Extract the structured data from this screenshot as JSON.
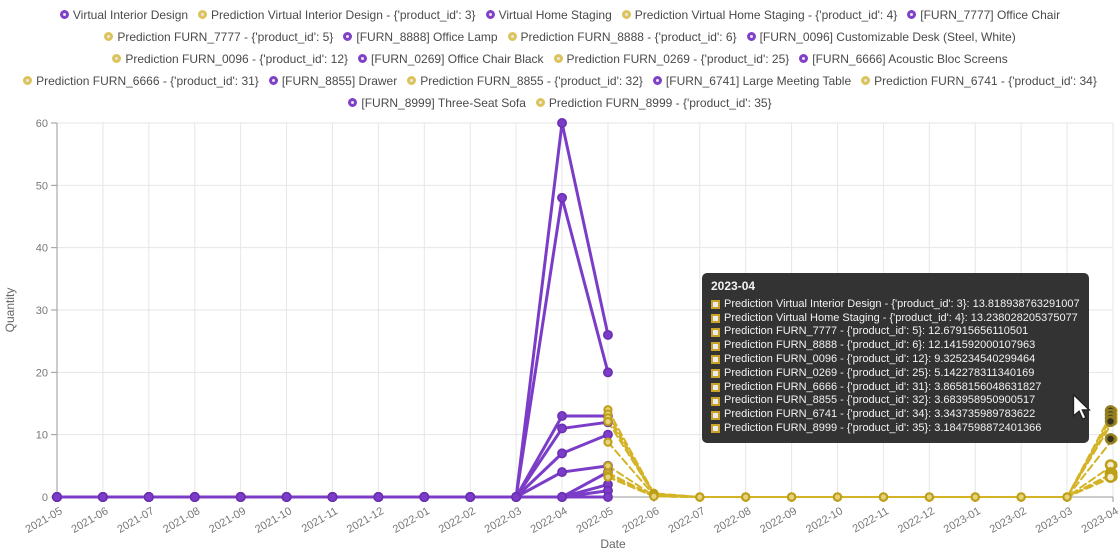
{
  "colors": {
    "actual_line": "#7b3dc8",
    "actual_marker_stroke": "#6a2fb0",
    "prediction_line": "#d4b426",
    "prediction_marker_fill": "#e6d27c",
    "prediction_marker_stroke": "#bd9f1a",
    "grid": "#e6e6e6",
    "axis": "#999999",
    "tick_text": "#787878",
    "tooltip_bg": "#2b2b2b"
  },
  "legend": {
    "items": [
      {
        "label": "Virtual Interior Design",
        "type": "actual"
      },
      {
        "label": "Prediction Virtual Interior Design - {'product_id': 3}",
        "type": "prediction"
      },
      {
        "label": "Virtual Home Staging",
        "type": "actual"
      },
      {
        "label": "Prediction Virtual Home Staging - {'product_id': 4}",
        "type": "prediction"
      },
      {
        "label": "[FURN_7777] Office Chair",
        "type": "actual"
      },
      {
        "label": "Prediction FURN_7777 - {'product_id': 5}",
        "type": "prediction"
      },
      {
        "label": "[FURN_8888] Office Lamp",
        "type": "actual"
      },
      {
        "label": "Prediction FURN_8888 - {'product_id': 6}",
        "type": "prediction"
      },
      {
        "label": "[FURN_0096] Customizable Desk (Steel, White)",
        "type": "actual"
      },
      {
        "label": "Prediction FURN_0096 - {'product_id': 12}",
        "type": "prediction"
      },
      {
        "label": "[FURN_0269] Office Chair Black",
        "type": "actual"
      },
      {
        "label": "Prediction FURN_0269 - {'product_id': 25}",
        "type": "prediction"
      },
      {
        "label": "[FURN_6666] Acoustic Bloc Screens",
        "type": "actual"
      },
      {
        "label": "Prediction FURN_6666 - {'product_id': 31}",
        "type": "prediction"
      },
      {
        "label": "[FURN_8855] Drawer",
        "type": "actual"
      },
      {
        "label": "Prediction FURN_8855 - {'product_id': 32}",
        "type": "prediction"
      },
      {
        "label": "[FURN_6741] Large Meeting Table",
        "type": "actual"
      },
      {
        "label": "Prediction FURN_6741 - {'product_id': 34}",
        "type": "prediction"
      },
      {
        "label": "[FURN_8999] Three-Seat Sofa",
        "type": "actual"
      },
      {
        "label": "Prediction FURN_8999 - {'product_id': 35}",
        "type": "prediction"
      }
    ]
  },
  "chart_data": {
    "type": "line",
    "x": [
      "2021-05",
      "2021-06",
      "2021-07",
      "2021-08",
      "2021-09",
      "2021-10",
      "2021-11",
      "2021-12",
      "2022-01",
      "2022-02",
      "2022-03",
      "2022-04",
      "2022-05",
      "2022-06",
      "2022-07",
      "2022-08",
      "2022-09",
      "2022-10",
      "2022-11",
      "2022-12",
      "2023-01",
      "2023-02",
      "2023-03",
      "2023-04"
    ],
    "xlabel": "Date",
    "ylabel": "Quantity",
    "ylim": [
      0,
      60
    ],
    "yticks": [
      0,
      10,
      20,
      30,
      40,
      50,
      60
    ],
    "grid": true,
    "legend_position": "top",
    "series": [
      {
        "name": "Virtual Interior Design",
        "role": "actual",
        "values": [
          0,
          0,
          0,
          0,
          0,
          0,
          0,
          0,
          0,
          0,
          0,
          60,
          26,
          null,
          null,
          null,
          null,
          null,
          null,
          null,
          null,
          null,
          null,
          null
        ]
      },
      {
        "name": "Virtual Home Staging",
        "role": "actual",
        "values": [
          0,
          0,
          0,
          0,
          0,
          0,
          0,
          0,
          0,
          0,
          0,
          48,
          20,
          null,
          null,
          null,
          null,
          null,
          null,
          null,
          null,
          null,
          null,
          null
        ]
      },
      {
        "name": "[FURN_7777] Office Chair",
        "role": "actual",
        "values": [
          0,
          0,
          0,
          0,
          0,
          0,
          0,
          0,
          0,
          0,
          0,
          13,
          13,
          null,
          null,
          null,
          null,
          null,
          null,
          null,
          null,
          null,
          null,
          null
        ]
      },
      {
        "name": "[FURN_8888] Office Lamp",
        "role": "actual",
        "values": [
          0,
          0,
          0,
          0,
          0,
          0,
          0,
          0,
          0,
          0,
          0,
          11,
          12,
          null,
          null,
          null,
          null,
          null,
          null,
          null,
          null,
          null,
          null,
          null
        ]
      },
      {
        "name": "[FURN_0096] Customizable Desk (Steel, White)",
        "role": "actual",
        "values": [
          0,
          0,
          0,
          0,
          0,
          0,
          0,
          0,
          0,
          0,
          0,
          7,
          10,
          null,
          null,
          null,
          null,
          null,
          null,
          null,
          null,
          null,
          null,
          null
        ]
      },
      {
        "name": "[FURN_0269] Office Chair Black",
        "role": "actual",
        "values": [
          0,
          0,
          0,
          0,
          0,
          0,
          0,
          0,
          0,
          0,
          0,
          4,
          5,
          null,
          null,
          null,
          null,
          null,
          null,
          null,
          null,
          null,
          null,
          null
        ]
      },
      {
        "name": "[FURN_6666] Acoustic Bloc Screens",
        "role": "actual",
        "values": [
          0,
          0,
          0,
          0,
          0,
          0,
          0,
          0,
          0,
          0,
          0,
          0,
          4,
          null,
          null,
          null,
          null,
          null,
          null,
          null,
          null,
          null,
          null,
          null
        ]
      },
      {
        "name": "[FURN_8855] Drawer",
        "role": "actual",
        "values": [
          0,
          0,
          0,
          0,
          0,
          0,
          0,
          0,
          0,
          0,
          0,
          0,
          2,
          null,
          null,
          null,
          null,
          null,
          null,
          null,
          null,
          null,
          null,
          null
        ]
      },
      {
        "name": "[FURN_6741] Large Meeting Table",
        "role": "actual",
        "values": [
          0,
          0,
          0,
          0,
          0,
          0,
          0,
          0,
          0,
          0,
          0,
          0,
          1,
          null,
          null,
          null,
          null,
          null,
          null,
          null,
          null,
          null,
          null,
          null
        ]
      },
      {
        "name": "[FURN_8999] Three-Seat Sofa",
        "role": "actual",
        "values": [
          0,
          0,
          0,
          0,
          0,
          0,
          0,
          0,
          0,
          0,
          0,
          0,
          0,
          null,
          null,
          null,
          null,
          null,
          null,
          null,
          null,
          null,
          null,
          null
        ]
      },
      {
        "name": "Prediction Virtual Interior Design - {'product_id': 3}",
        "role": "prediction",
        "values": [
          null,
          null,
          null,
          null,
          null,
          null,
          null,
          null,
          null,
          null,
          null,
          null,
          14,
          0.6,
          0,
          0,
          0,
          0,
          0,
          0,
          0,
          0,
          0,
          13.818938763291007
        ]
      },
      {
        "name": "Prediction Virtual Home Staging - {'product_id': 4}",
        "role": "prediction",
        "values": [
          null,
          null,
          null,
          null,
          null,
          null,
          null,
          null,
          null,
          null,
          null,
          null,
          13.3,
          0.5,
          0,
          0,
          0,
          0,
          0,
          0,
          0,
          0,
          0,
          13.238028205375077
        ]
      },
      {
        "name": "Prediction FURN_7777 - {'product_id': 5}",
        "role": "prediction",
        "values": [
          null,
          null,
          null,
          null,
          null,
          null,
          null,
          null,
          null,
          null,
          null,
          null,
          12.7,
          0.4,
          0,
          0,
          0,
          0,
          0,
          0,
          0,
          0,
          0,
          12.67915656110501
        ]
      },
      {
        "name": "Prediction FURN_8888 - {'product_id': 6}",
        "role": "prediction",
        "values": [
          null,
          null,
          null,
          null,
          null,
          null,
          null,
          null,
          null,
          null,
          null,
          null,
          12.1,
          0.4,
          0,
          0,
          0,
          0,
          0,
          0,
          0,
          0,
          0,
          12.141592000107963
        ]
      },
      {
        "name": "Prediction FURN_0096 - {'product_id': 12}",
        "role": "prediction",
        "values": [
          null,
          null,
          null,
          null,
          null,
          null,
          null,
          null,
          null,
          null,
          null,
          null,
          8.8,
          0.3,
          0,
          0,
          0,
          0,
          0,
          0,
          0,
          0,
          0,
          9.325234540299464
        ]
      },
      {
        "name": "Prediction FURN_0269 - {'product_id': 25}",
        "role": "prediction",
        "values": [
          null,
          null,
          null,
          null,
          null,
          null,
          null,
          null,
          null,
          null,
          null,
          null,
          5.0,
          0.2,
          0,
          0,
          0,
          0,
          0,
          0,
          0,
          0,
          0,
          5.142278311340169
        ]
      },
      {
        "name": "Prediction FURN_6666 - {'product_id': 31}",
        "role": "prediction",
        "values": [
          null,
          null,
          null,
          null,
          null,
          null,
          null,
          null,
          null,
          null,
          null,
          null,
          3.9,
          0.15,
          0,
          0,
          0,
          0,
          0,
          0,
          0,
          0,
          0,
          3.8658156048631827
        ]
      },
      {
        "name": "Prediction FURN_8855 - {'product_id': 32}",
        "role": "prediction",
        "values": [
          null,
          null,
          null,
          null,
          null,
          null,
          null,
          null,
          null,
          null,
          null,
          null,
          3.7,
          0.12,
          0,
          0,
          0,
          0,
          0,
          0,
          0,
          0,
          0,
          3.683958950900517
        ]
      },
      {
        "name": "Prediction FURN_6741 - {'product_id': 34}",
        "role": "prediction",
        "values": [
          null,
          null,
          null,
          null,
          null,
          null,
          null,
          null,
          null,
          null,
          null,
          null,
          3.3,
          0.1,
          0,
          0,
          0,
          0,
          0,
          0,
          0,
          0,
          0,
          3.343735989783622
        ]
      },
      {
        "name": "Prediction FURN_8999 - {'product_id': 35}",
        "role": "prediction",
        "values": [
          null,
          null,
          null,
          null,
          null,
          null,
          null,
          null,
          null,
          null,
          null,
          null,
          3.2,
          0.1,
          0,
          0,
          0,
          0,
          0,
          0,
          0,
          0,
          0,
          3.1847598872401366
        ]
      }
    ]
  },
  "tooltip": {
    "title": "2023-04",
    "rows": [
      {
        "label": "Prediction Virtual Interior Design - {'product_id': 3}",
        "value": "13.818938763291007"
      },
      {
        "label": "Prediction Virtual Home Staging - {'product_id': 4}",
        "value": "13.238028205375077"
      },
      {
        "label": "Prediction FURN_7777 - {'product_id': 5}",
        "value": "12.67915656110501"
      },
      {
        "label": "Prediction FURN_8888 - {'product_id': 6}",
        "value": "12.141592000107963"
      },
      {
        "label": "Prediction FURN_0096 - {'product_id': 12}",
        "value": "9.325234540299464"
      },
      {
        "label": "Prediction FURN_0269 - {'product_id': 25}",
        "value": "5.142278311340169"
      },
      {
        "label": "Prediction FURN_6666 - {'product_id': 31}",
        "value": "3.8658156048631827"
      },
      {
        "label": "Prediction FURN_8855 - {'product_id': 32}",
        "value": "3.683958950900517"
      },
      {
        "label": "Prediction FURN_6741 - {'product_id': 34}",
        "value": "3.343735989783622"
      },
      {
        "label": "Prediction FURN_8999 - {'product_id': 35}",
        "value": "3.1847598872401366"
      }
    ]
  }
}
